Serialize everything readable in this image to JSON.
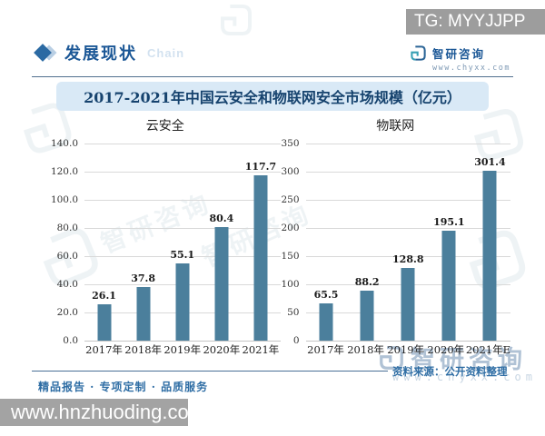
{
  "page": {
    "tg_badge": "TG: MYYJJPP",
    "site_bar": "www.hnzhuoding.com"
  },
  "header": {
    "section_title": "发展现状",
    "section_watermark": "Chain",
    "brand_name": "智研咨询",
    "brand_url": "www.chyxx.com"
  },
  "banner": {
    "title": "2017-2021年中国云安全和物联网安全市场规模（亿元）"
  },
  "footer": {
    "source": "资料来源：公开资料整理",
    "tagline": "精品报告 · 专项定制 · 品质服务"
  },
  "watermark": {
    "brand": "智研咨询",
    "url": "www.chyxx.com"
  },
  "colors": {
    "bar": "#4b7f9c",
    "banner_bg": "#d9e9f6",
    "banner_text": "#16436e",
    "accent_blue": "#1b5796",
    "source_text": "#2e6da4",
    "badge_gray": "#9d9d9d",
    "grid": "#d9d9d9"
  },
  "chart_data": [
    {
      "type": "bar",
      "title": "云安全",
      "categories": [
        "2017年",
        "2018年",
        "2019年",
        "2020年",
        "2021年"
      ],
      "values": [
        26.1,
        37.8,
        55.1,
        80.4,
        117.7
      ],
      "value_labels": [
        "26.1",
        "37.8",
        "55.1",
        "80.4",
        "117.7"
      ],
      "ylabel": "",
      "xlabel": "",
      "ylim": [
        0,
        140
      ],
      "ytick_step": 20,
      "yticks": [
        "0.0",
        "20.0",
        "40.0",
        "60.0",
        "80.0",
        "100.0",
        "120.0",
        "140.0"
      ],
      "grid": true,
      "legend": false
    },
    {
      "type": "bar",
      "title": "物联网",
      "categories": [
        "2017年",
        "2018年",
        "2019年",
        "2020年",
        "2021年E"
      ],
      "values": [
        65.5,
        88.2,
        128.8,
        195.1,
        301.4
      ],
      "value_labels": [
        "65.5",
        "88.2",
        "128.8",
        "195.1",
        "301.4"
      ],
      "ylabel": "",
      "xlabel": "",
      "ylim": [
        0,
        350
      ],
      "ytick_step": 50,
      "yticks": [
        "0",
        "50",
        "100",
        "150",
        "200",
        "250",
        "300",
        "350"
      ],
      "grid": true,
      "legend": false
    }
  ]
}
